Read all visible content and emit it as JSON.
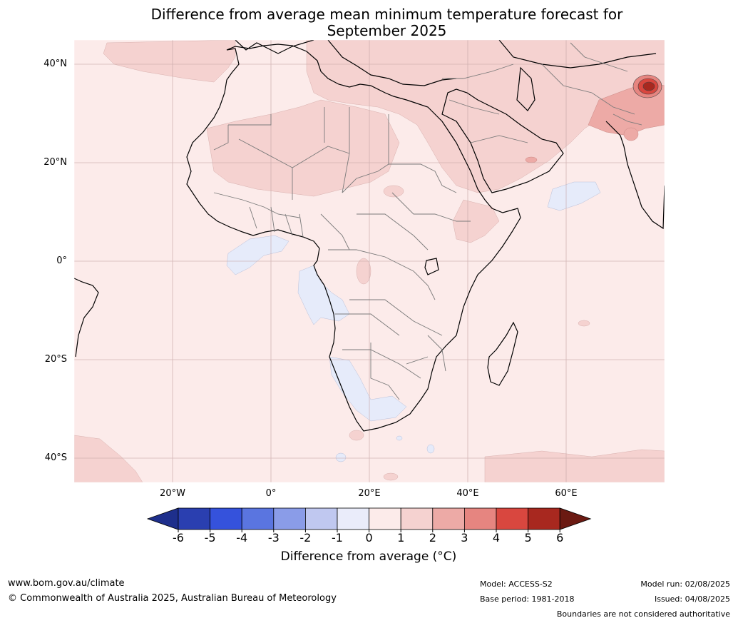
{
  "title_line1": "Difference from average mean minimum temperature forecast for",
  "title_line2": "September 2025",
  "lat_labels": [
    "40°N",
    "20°N",
    "0°",
    "20°S",
    "40°S"
  ],
  "lon_labels": [
    "20°W",
    "0°",
    "20°E",
    "40°E",
    "60°E"
  ],
  "colorbar": {
    "ticks": [
      "-6",
      "-5",
      "-4",
      "-3",
      "-2",
      "-1",
      "0",
      "1",
      "2",
      "3",
      "4",
      "5",
      "6"
    ],
    "colors": [
      "#1e2f8c",
      "#2a3fb0",
      "#3552dc",
      "#5a75e0",
      "#8a9ce8",
      "#c0c8f0",
      "#eaecfa",
      "#fcebea",
      "#f5d2d0",
      "#edaaa6",
      "#e68580",
      "#d9473f",
      "#a8281f",
      "#6b1a12"
    ],
    "label": "Difference from average (°C)"
  },
  "colors": {
    "background": "#fcebea",
    "warm_1_2": "#f5d2d0",
    "warm_2_3": "#edaaa6",
    "warm_high": "#d9473f",
    "cool": "#e6ebfa",
    "coast": "#000000",
    "borders": "#7a7a7a",
    "grid": "#c8a8a8"
  },
  "footer": {
    "website": "www.bom.gov.au/climate",
    "copyright": "© Commonwealth of Australia 2025, Australian Bureau of Meteorology",
    "model": "Model: ACCESS-S2",
    "base_period": "Base period: 1981-2018",
    "model_run": "Model run: 02/08/2025",
    "issued": "Issued: 04/08/2025",
    "disclaimer": "Boundaries are not considered authoritative"
  }
}
